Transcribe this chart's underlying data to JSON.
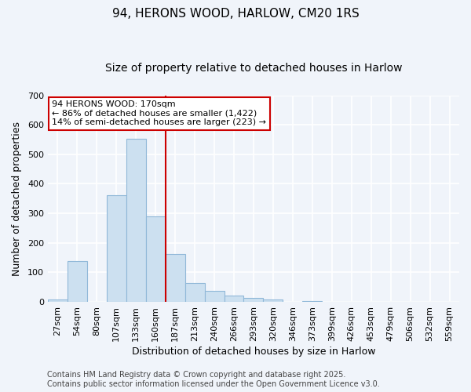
{
  "title_line1": "94, HERONS WOOD, HARLOW, CM20 1RS",
  "title_line2": "Size of property relative to detached houses in Harlow",
  "xlabel": "Distribution of detached houses by size in Harlow",
  "ylabel": "Number of detached properties",
  "categories": [
    "27sqm",
    "54sqm",
    "80sqm",
    "107sqm",
    "133sqm",
    "160sqm",
    "187sqm",
    "213sqm",
    "240sqm",
    "266sqm",
    "293sqm",
    "320sqm",
    "346sqm",
    "373sqm",
    "399sqm",
    "426sqm",
    "453sqm",
    "479sqm",
    "506sqm",
    "532sqm",
    "559sqm"
  ],
  "values": [
    8,
    138,
    0,
    362,
    554,
    290,
    162,
    65,
    38,
    22,
    13,
    8,
    0,
    4,
    0,
    0,
    0,
    0,
    0,
    0,
    0
  ],
  "bar_color": "#cce0f0",
  "bar_edgecolor": "#90b8d8",
  "redline_index": 5.5,
  "annotation_text": "94 HERONS WOOD: 170sqm\n← 86% of detached houses are smaller (1,422)\n14% of semi-detached houses are larger (223) →",
  "annotation_box_facecolor": "#ffffff",
  "annotation_box_edgecolor": "#cc0000",
  "redline_color": "#cc0000",
  "ylim": [
    0,
    700
  ],
  "yticks": [
    0,
    100,
    200,
    300,
    400,
    500,
    600,
    700
  ],
  "footer_line1": "Contains HM Land Registry data © Crown copyright and database right 2025.",
  "footer_line2": "Contains public sector information licensed under the Open Government Licence v3.0.",
  "fig_facecolor": "#f0f4fa",
  "plot_bg_color": "#f0f4fa",
  "grid_color": "#ffffff",
  "title_fontsize": 11,
  "subtitle_fontsize": 10,
  "axis_label_fontsize": 9,
  "tick_fontsize": 8,
  "annotation_fontsize": 8,
  "footer_fontsize": 7
}
